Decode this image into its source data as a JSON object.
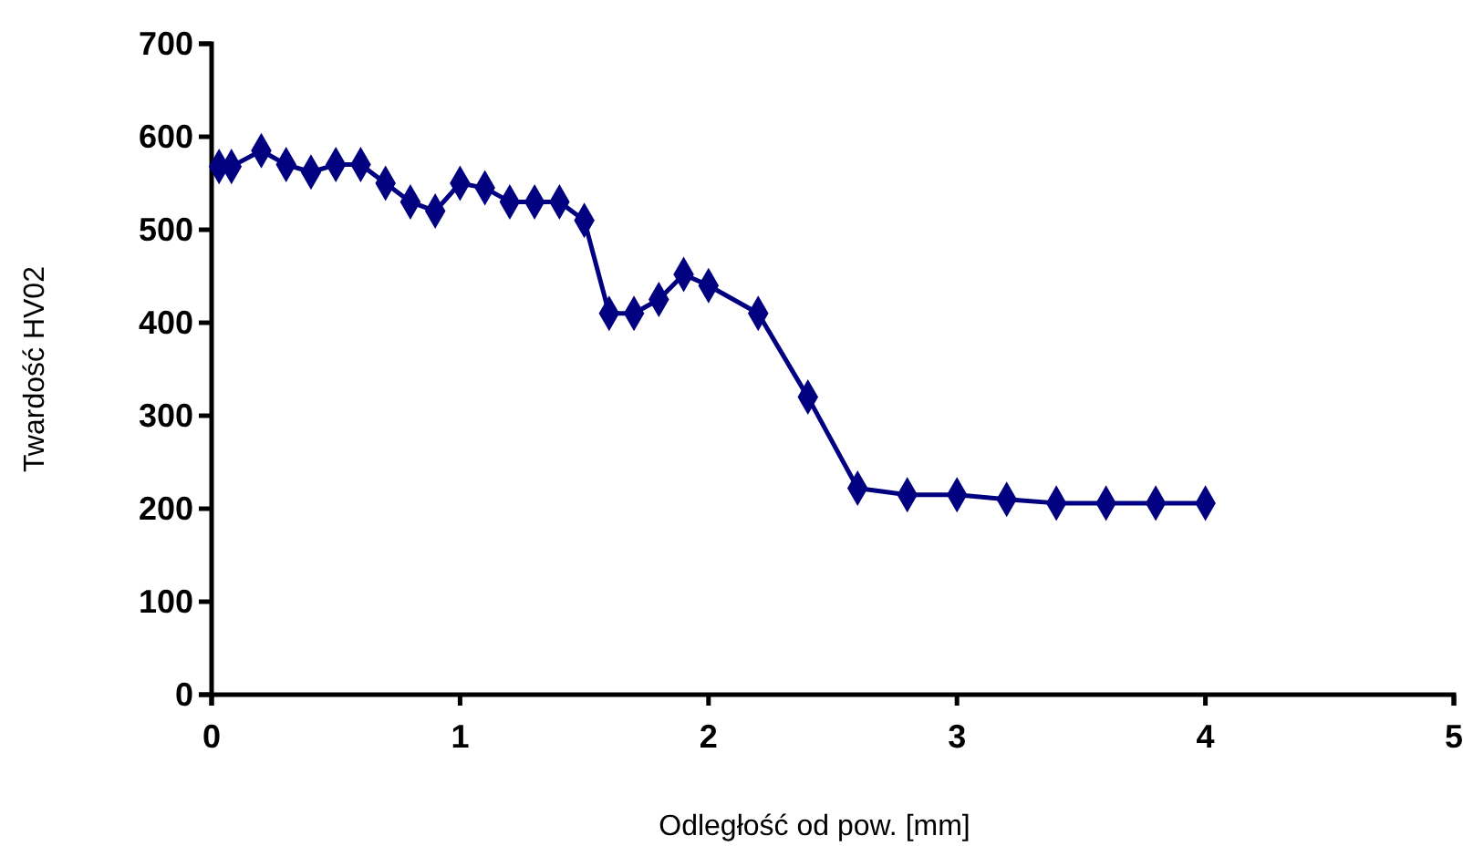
{
  "chart_data": {
    "type": "line",
    "xlabel": "Odległość od pow. [mm]",
    "ylabel": "Twardość HV02",
    "x": [
      0.03,
      0.08,
      0.2,
      0.3,
      0.4,
      0.5,
      0.6,
      0.7,
      0.8,
      0.9,
      1.0,
      1.1,
      1.2,
      1.3,
      1.4,
      1.5,
      1.6,
      1.7,
      1.8,
      1.9,
      2.0,
      2.2,
      2.4,
      2.6,
      2.8,
      3.0,
      3.2,
      3.4,
      3.6,
      3.8,
      4.0
    ],
    "series": [
      {
        "color": "#000080",
        "values": [
          568,
          568,
          585,
          570,
          562,
          570,
          570,
          550,
          530,
          520,
          550,
          545,
          530,
          530,
          530,
          510,
          410,
          410,
          425,
          452,
          440,
          410,
          320,
          222,
          215,
          215,
          210,
          206,
          206,
          206,
          206
        ]
      }
    ],
    "xlim": [
      0,
      5
    ],
    "xticks": [
      0,
      1,
      2,
      3,
      4,
      5
    ],
    "ylim": [
      0,
      700
    ],
    "yticks": [
      0,
      100,
      200,
      300,
      400,
      500,
      600,
      700
    ],
    "marker": "diamond",
    "grid": false
  }
}
